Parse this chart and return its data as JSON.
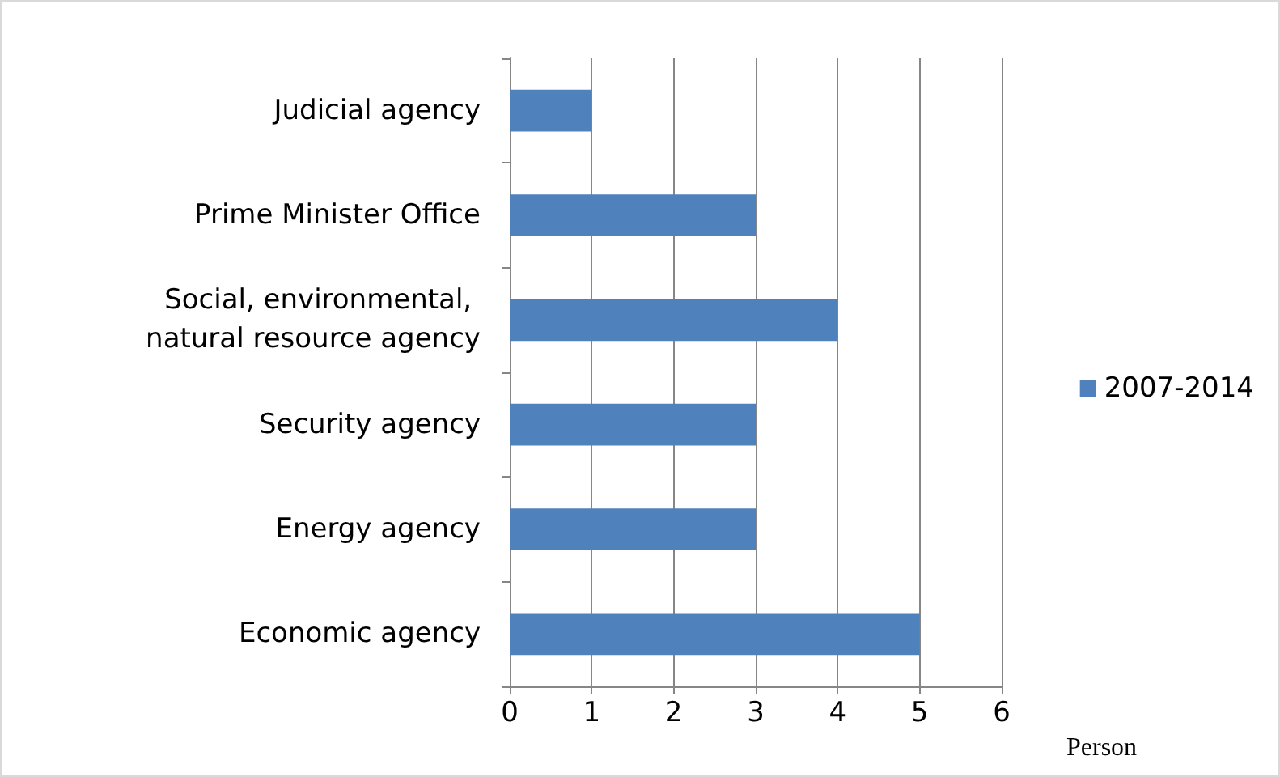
{
  "chart_data": {
    "type": "bar",
    "orientation": "horizontal",
    "xlabel": "Person",
    "categories": [
      "Judicial agency",
      "Prime Minister Office",
      "Social, environmental, natural resource agency",
      "Security agency",
      "Energy agency",
      "Economic agency"
    ],
    "series": [
      {
        "name": "2007-2014",
        "color": "#4f81bd",
        "values": [
          1,
          3,
          4,
          3,
          3,
          5
        ]
      }
    ],
    "xlim": [
      0,
      6
    ],
    "xticks": [
      0,
      1,
      2,
      3,
      4,
      5,
      6
    ],
    "grid": "x",
    "legend": "right"
  }
}
